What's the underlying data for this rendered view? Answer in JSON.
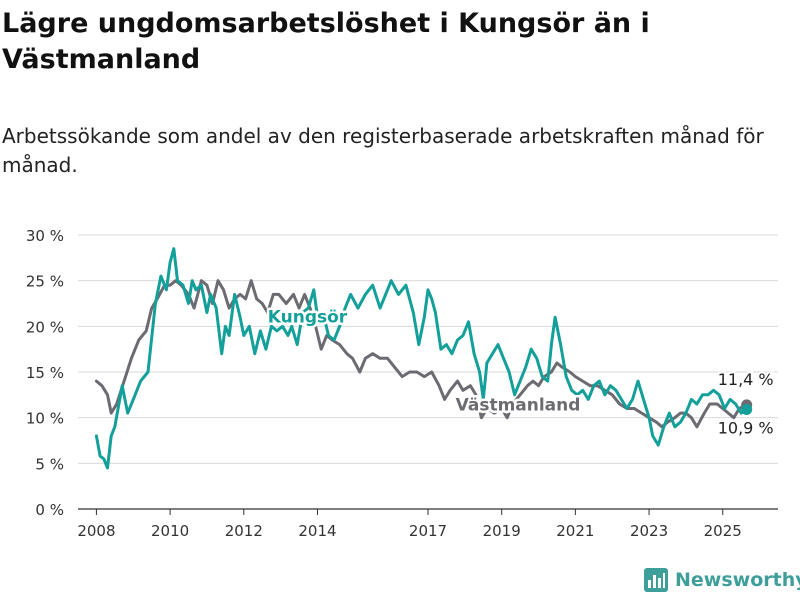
{
  "header": {
    "title": "Lägre ungdomsarbetslöshet i Kungsör än i Västmanland",
    "subtitle": "Arbetssökande som andel av den registerbaserade arbetskraften månad för månad."
  },
  "brand": {
    "name": "Newsworthy",
    "logo_icon": "bar-chart-logo-icon"
  },
  "colors": {
    "kungsor": "#14a09a",
    "vastmanland": "#6d6b72",
    "grid": "#d9d9d9",
    "brand": "#3e9f9a"
  },
  "chart_data": {
    "type": "line",
    "ylim": [
      0,
      30
    ],
    "y_ticks": [
      0,
      5,
      10,
      15,
      20,
      25,
      30
    ],
    "y_tick_labels": [
      "0 %",
      "5 %",
      "10 %",
      "15 %",
      "20 %",
      "25 %",
      "30 %"
    ],
    "x_range": [
      2007.5,
      2026.5
    ],
    "x_ticks": [
      2008,
      2010,
      2012,
      2014,
      2017,
      2019,
      2021,
      2023,
      2025
    ],
    "x_tick_labels": [
      "2008",
      "2010",
      "2012",
      "2014",
      "2017",
      "2019",
      "2021",
      "2023",
      "2025"
    ],
    "grid": true,
    "series": [
      {
        "name": "Kungsör",
        "color": "#14a09a",
        "last_value_label": "10,9 %",
        "points": [
          [
            2008.0,
            8.0
          ],
          [
            2008.1,
            5.8
          ],
          [
            2008.2,
            5.5
          ],
          [
            2008.3,
            4.5
          ],
          [
            2008.4,
            8.0
          ],
          [
            2008.5,
            9.0
          ],
          [
            2008.7,
            13.5
          ],
          [
            2008.85,
            10.5
          ],
          [
            2009.0,
            12.0
          ],
          [
            2009.2,
            14.0
          ],
          [
            2009.4,
            15.0
          ],
          [
            2009.6,
            22.5
          ],
          [
            2009.75,
            25.5
          ],
          [
            2009.9,
            24.0
          ],
          [
            2010.0,
            27.0
          ],
          [
            2010.1,
            28.5
          ],
          [
            2010.2,
            25.0
          ],
          [
            2010.35,
            24.5
          ],
          [
            2010.5,
            22.5
          ],
          [
            2010.6,
            25.0
          ],
          [
            2010.7,
            24.0
          ],
          [
            2010.85,
            24.5
          ],
          [
            2011.0,
            21.5
          ],
          [
            2011.1,
            23.5
          ],
          [
            2011.25,
            22.0
          ],
          [
            2011.4,
            17.0
          ],
          [
            2011.5,
            20.0
          ],
          [
            2011.6,
            19.0
          ],
          [
            2011.75,
            23.5
          ],
          [
            2011.9,
            21.0
          ],
          [
            2012.0,
            19.0
          ],
          [
            2012.15,
            20.0
          ],
          [
            2012.3,
            17.0
          ],
          [
            2012.45,
            19.5
          ],
          [
            2012.6,
            17.5
          ],
          [
            2012.75,
            20.0
          ],
          [
            2012.9,
            19.5
          ],
          [
            2013.05,
            20.0
          ],
          [
            2013.2,
            19.0
          ],
          [
            2013.3,
            20.0
          ],
          [
            2013.45,
            18.0
          ],
          [
            2013.6,
            21.5
          ],
          [
            2013.75,
            22.0
          ],
          [
            2013.9,
            24.0
          ],
          [
            2014.0,
            21.0
          ],
          [
            2014.15,
            21.5
          ],
          [
            2014.3,
            19.0
          ],
          [
            2014.45,
            18.5
          ],
          [
            2014.6,
            20.0
          ],
          [
            2014.75,
            22.0
          ],
          [
            2014.9,
            23.5
          ],
          [
            2015.1,
            22.0
          ],
          [
            2015.3,
            23.5
          ],
          [
            2015.5,
            24.5
          ],
          [
            2015.7,
            22.0
          ],
          [
            2015.9,
            24.0
          ],
          [
            2016.0,
            25.0
          ],
          [
            2016.2,
            23.5
          ],
          [
            2016.4,
            24.5
          ],
          [
            2016.6,
            21.5
          ],
          [
            2016.75,
            18.0
          ],
          [
            2016.9,
            21.0
          ],
          [
            2017.0,
            24.0
          ],
          [
            2017.1,
            23.0
          ],
          [
            2017.2,
            21.5
          ],
          [
            2017.35,
            17.5
          ],
          [
            2017.5,
            18.0
          ],
          [
            2017.65,
            17.0
          ],
          [
            2017.8,
            18.5
          ],
          [
            2017.95,
            19.0
          ],
          [
            2018.1,
            20.5
          ],
          [
            2018.25,
            17.0
          ],
          [
            2018.4,
            15.0
          ],
          [
            2018.5,
            12.0
          ],
          [
            2018.6,
            16.0
          ],
          [
            2018.75,
            17.0
          ],
          [
            2018.9,
            18.0
          ],
          [
            2019.05,
            16.5
          ],
          [
            2019.2,
            15.0
          ],
          [
            2019.35,
            12.5
          ],
          [
            2019.5,
            14.0
          ],
          [
            2019.65,
            15.5
          ],
          [
            2019.8,
            17.5
          ],
          [
            2019.95,
            16.5
          ],
          [
            2020.1,
            14.5
          ],
          [
            2020.25,
            14.0
          ],
          [
            2020.35,
            18.0
          ],
          [
            2020.45,
            21.0
          ],
          [
            2020.6,
            18.0
          ],
          [
            2020.75,
            14.5
          ],
          [
            2020.9,
            13.0
          ],
          [
            2021.05,
            12.5
          ],
          [
            2021.2,
            13.0
          ],
          [
            2021.35,
            12.0
          ],
          [
            2021.5,
            13.5
          ],
          [
            2021.65,
            14.0
          ],
          [
            2021.8,
            12.5
          ],
          [
            2021.95,
            13.5
          ],
          [
            2022.1,
            13.0
          ],
          [
            2022.25,
            12.0
          ],
          [
            2022.4,
            11.0
          ],
          [
            2022.55,
            12.0
          ],
          [
            2022.7,
            14.0
          ],
          [
            2022.85,
            12.0
          ],
          [
            2023.0,
            10.0
          ],
          [
            2023.1,
            8.0
          ],
          [
            2023.25,
            7.0
          ],
          [
            2023.4,
            9.0
          ],
          [
            2023.55,
            10.5
          ],
          [
            2023.7,
            9.0
          ],
          [
            2023.85,
            9.5
          ],
          [
            2024.0,
            10.5
          ],
          [
            2024.15,
            12.0
          ],
          [
            2024.3,
            11.5
          ],
          [
            2024.45,
            12.5
          ],
          [
            2024.6,
            12.5
          ],
          [
            2024.75,
            13.0
          ],
          [
            2024.9,
            12.5
          ],
          [
            2025.05,
            11.0
          ],
          [
            2025.2,
            12.0
          ],
          [
            2025.35,
            11.5
          ],
          [
            2025.5,
            10.5
          ],
          [
            2025.65,
            10.9
          ]
        ]
      },
      {
        "name": "Västmanland",
        "color": "#6d6b72",
        "last_value_label": "11,4 %",
        "points": [
          [
            2008.0,
            14.0
          ],
          [
            2008.15,
            13.5
          ],
          [
            2008.3,
            12.5
          ],
          [
            2008.4,
            10.5
          ],
          [
            2008.55,
            11.5
          ],
          [
            2008.75,
            14.0
          ],
          [
            2008.95,
            16.5
          ],
          [
            2009.15,
            18.5
          ],
          [
            2009.35,
            19.5
          ],
          [
            2009.5,
            22.0
          ],
          [
            2009.65,
            23.0
          ],
          [
            2009.85,
            24.5
          ],
          [
            2010.0,
            24.5
          ],
          [
            2010.15,
            25.0
          ],
          [
            2010.3,
            24.5
          ],
          [
            2010.5,
            23.5
          ],
          [
            2010.65,
            22.0
          ],
          [
            2010.85,
            25.0
          ],
          [
            2011.0,
            24.5
          ],
          [
            2011.15,
            22.5
          ],
          [
            2011.3,
            25.0
          ],
          [
            2011.45,
            24.0
          ],
          [
            2011.6,
            22.0
          ],
          [
            2011.75,
            23.0
          ],
          [
            2011.9,
            23.5
          ],
          [
            2012.05,
            23.0
          ],
          [
            2012.2,
            25.0
          ],
          [
            2012.35,
            23.0
          ],
          [
            2012.5,
            22.5
          ],
          [
            2012.65,
            21.5
          ],
          [
            2012.8,
            23.5
          ],
          [
            2012.95,
            23.5
          ],
          [
            2013.15,
            22.5
          ],
          [
            2013.35,
            23.5
          ],
          [
            2013.5,
            22.0
          ],
          [
            2013.65,
            23.5
          ],
          [
            2013.8,
            22.0
          ],
          [
            2013.95,
            20.0
          ],
          [
            2014.1,
            17.5
          ],
          [
            2014.25,
            19.0
          ],
          [
            2014.4,
            18.5
          ],
          [
            2014.6,
            18.0
          ],
          [
            2014.8,
            17.0
          ],
          [
            2014.95,
            16.5
          ],
          [
            2015.15,
            15.0
          ],
          [
            2015.3,
            16.5
          ],
          [
            2015.5,
            17.0
          ],
          [
            2015.7,
            16.5
          ],
          [
            2015.9,
            16.5
          ],
          [
            2016.1,
            15.5
          ],
          [
            2016.3,
            14.5
          ],
          [
            2016.5,
            15.0
          ],
          [
            2016.7,
            15.0
          ],
          [
            2016.9,
            14.5
          ],
          [
            2017.1,
            15.0
          ],
          [
            2017.3,
            13.5
          ],
          [
            2017.45,
            12.0
          ],
          [
            2017.6,
            13.0
          ],
          [
            2017.8,
            14.0
          ],
          [
            2017.95,
            13.0
          ],
          [
            2018.15,
            13.5
          ],
          [
            2018.3,
            12.5
          ],
          [
            2018.45,
            10.0
          ],
          [
            2018.6,
            11.0
          ],
          [
            2018.8,
            10.5
          ],
          [
            2019.0,
            11.0
          ],
          [
            2019.15,
            10.0
          ],
          [
            2019.3,
            11.5
          ],
          [
            2019.5,
            12.5
          ],
          [
            2019.7,
            13.5
          ],
          [
            2019.85,
            14.0
          ],
          [
            2020.0,
            13.5
          ],
          [
            2020.15,
            14.5
          ],
          [
            2020.35,
            15.0
          ],
          [
            2020.5,
            16.0
          ],
          [
            2020.65,
            15.5
          ],
          [
            2020.85,
            15.0
          ],
          [
            2021.0,
            14.5
          ],
          [
            2021.2,
            14.0
          ],
          [
            2021.4,
            13.5
          ],
          [
            2021.6,
            13.5
          ],
          [
            2021.8,
            13.0
          ],
          [
            2022.0,
            12.5
          ],
          [
            2022.2,
            11.5
          ],
          [
            2022.4,
            11.0
          ],
          [
            2022.6,
            11.0
          ],
          [
            2022.8,
            10.5
          ],
          [
            2023.0,
            10.0
          ],
          [
            2023.2,
            9.5
          ],
          [
            2023.35,
            9.0
          ],
          [
            2023.5,
            9.5
          ],
          [
            2023.7,
            10.0
          ],
          [
            2023.85,
            10.5
          ],
          [
            2024.0,
            10.5
          ],
          [
            2024.15,
            10.0
          ],
          [
            2024.3,
            9.0
          ],
          [
            2024.5,
            10.5
          ],
          [
            2024.65,
            11.5
          ],
          [
            2024.85,
            11.5
          ],
          [
            2025.0,
            11.0
          ],
          [
            2025.15,
            10.5
          ],
          [
            2025.3,
            10.0
          ],
          [
            2025.45,
            11.0
          ],
          [
            2025.65,
            11.4
          ]
        ]
      }
    ]
  }
}
